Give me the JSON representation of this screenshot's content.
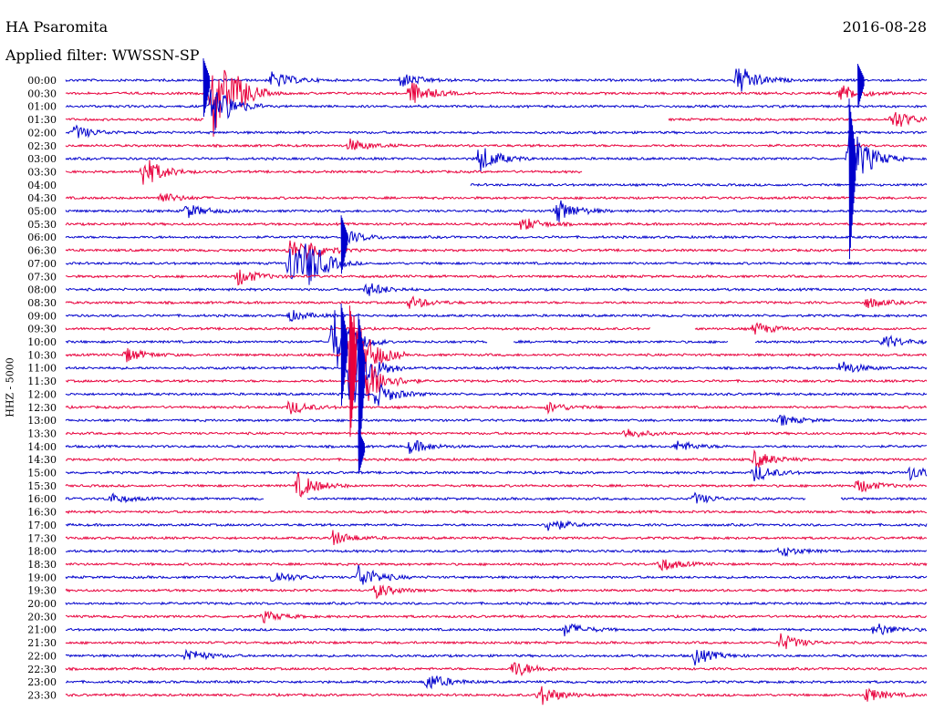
{
  "header": {
    "station": "HA Psaromita",
    "date": "2016-08-28",
    "filter": "Applied filter: WWSSN-SP"
  },
  "chart_data": {
    "type": "line",
    "title": "HA Psaromita",
    "subtitle": "Applied filter: WWSSN-SP",
    "date": "2016-08-28",
    "ylabel": "HHZ - 5000",
    "xlabel": "",
    "grid": false,
    "colors": [
      "#0000cc",
      "#e8003c"
    ],
    "row_labels": [
      "00:00",
      "00:30",
      "01:00",
      "01:30",
      "02:00",
      "02:30",
      "03:00",
      "03:30",
      "04:00",
      "04:30",
      "05:00",
      "05:30",
      "06:00",
      "06:30",
      "07:00",
      "07:30",
      "08:00",
      "08:30",
      "09:00",
      "09:30",
      "10:00",
      "10:30",
      "11:00",
      "11:30",
      "12:00",
      "12:30",
      "13:00",
      "13:30",
      "14:00",
      "14:30",
      "15:00",
      "15:30",
      "16:00",
      "16:30",
      "17:00",
      "17:30",
      "18:00",
      "18:30",
      "19:00",
      "19:30",
      "20:00",
      "20:30",
      "21:00",
      "21:30",
      "22:00",
      "22:30",
      "23:00",
      "23:30"
    ],
    "row_minutes": 30,
    "events": [
      {
        "row": 0,
        "pos": 0.24,
        "amp": 10
      },
      {
        "row": 0,
        "pos": 0.39,
        "amp": 8
      },
      {
        "row": 0,
        "pos": 0.78,
        "amp": 18
      },
      {
        "row": 1,
        "pos": 0.17,
        "amp": 55
      },
      {
        "row": 1,
        "pos": 0.2,
        "amp": 8
      },
      {
        "row": 1,
        "pos": 0.4,
        "amp": 14
      },
      {
        "row": 1,
        "pos": 0.9,
        "amp": 10
      },
      {
        "row": 2,
        "pos": 0.17,
        "amp": 30
      },
      {
        "row": 3,
        "pos": 0.96,
        "amp": 12
      },
      {
        "row": 4,
        "pos": 0.01,
        "amp": 8
      },
      {
        "row": 5,
        "pos": 0.33,
        "amp": 7
      },
      {
        "row": 6,
        "pos": 0.48,
        "amp": 16
      },
      {
        "row": 6,
        "pos": 0.91,
        "amp": 40
      },
      {
        "row": 7,
        "pos": 0.09,
        "amp": 18
      },
      {
        "row": 9,
        "pos": 0.11,
        "amp": 6
      },
      {
        "row": 10,
        "pos": 0.14,
        "amp": 8
      },
      {
        "row": 10,
        "pos": 0.57,
        "amp": 14
      },
      {
        "row": 11,
        "pos": 0.53,
        "amp": 8
      },
      {
        "row": 12,
        "pos": 0.33,
        "amp": 6
      },
      {
        "row": 13,
        "pos": 0.26,
        "amp": 12
      },
      {
        "row": 13,
        "pos": 0.28,
        "amp": 10
      },
      {
        "row": 14,
        "pos": 0.26,
        "amp": 28
      },
      {
        "row": 14,
        "pos": 0.28,
        "amp": 20
      },
      {
        "row": 15,
        "pos": 0.2,
        "amp": 10
      },
      {
        "row": 16,
        "pos": 0.35,
        "amp": 8
      },
      {
        "row": 17,
        "pos": 0.4,
        "amp": 7
      },
      {
        "row": 17,
        "pos": 0.93,
        "amp": 6
      },
      {
        "row": 18,
        "pos": 0.26,
        "amp": 6
      },
      {
        "row": 19,
        "pos": 0.8,
        "amp": 7
      },
      {
        "row": 20,
        "pos": 0.31,
        "amp": 40
      },
      {
        "row": 20,
        "pos": 0.95,
        "amp": 8
      },
      {
        "row": 21,
        "pos": 0.33,
        "amp": 55
      },
      {
        "row": 21,
        "pos": 0.07,
        "amp": 8
      },
      {
        "row": 22,
        "pos": 0.33,
        "amp": 50
      },
      {
        "row": 22,
        "pos": 0.9,
        "amp": 8
      },
      {
        "row": 23,
        "pos": 0.35,
        "amp": 25
      },
      {
        "row": 24,
        "pos": 0.36,
        "amp": 14
      },
      {
        "row": 25,
        "pos": 0.26,
        "amp": 8
      },
      {
        "row": 25,
        "pos": 0.56,
        "amp": 6
      },
      {
        "row": 26,
        "pos": 0.83,
        "amp": 6
      },
      {
        "row": 27,
        "pos": 0.65,
        "amp": 6
      },
      {
        "row": 28,
        "pos": 0.4,
        "amp": 8
      },
      {
        "row": 28,
        "pos": 0.71,
        "amp": 6
      },
      {
        "row": 29,
        "pos": 0.8,
        "amp": 10
      },
      {
        "row": 30,
        "pos": 0.8,
        "amp": 10
      },
      {
        "row": 30,
        "pos": 0.98,
        "amp": 8
      },
      {
        "row": 31,
        "pos": 0.27,
        "amp": 14
      },
      {
        "row": 31,
        "pos": 0.92,
        "amp": 8
      },
      {
        "row": 32,
        "pos": 0.05,
        "amp": 6
      },
      {
        "row": 32,
        "pos": 0.73,
        "amp": 6
      },
      {
        "row": 34,
        "pos": 0.56,
        "amp": 8
      },
      {
        "row": 35,
        "pos": 0.31,
        "amp": 8
      },
      {
        "row": 36,
        "pos": 0.83,
        "amp": 6
      },
      {
        "row": 37,
        "pos": 0.69,
        "amp": 8
      },
      {
        "row": 38,
        "pos": 0.34,
        "amp": 14
      },
      {
        "row": 38,
        "pos": 0.24,
        "amp": 8
      },
      {
        "row": 39,
        "pos": 0.36,
        "amp": 8
      },
      {
        "row": 41,
        "pos": 0.23,
        "amp": 6
      },
      {
        "row": 42,
        "pos": 0.58,
        "amp": 8
      },
      {
        "row": 42,
        "pos": 0.94,
        "amp": 8
      },
      {
        "row": 43,
        "pos": 0.83,
        "amp": 10
      },
      {
        "row": 44,
        "pos": 0.14,
        "amp": 8
      },
      {
        "row": 44,
        "pos": 0.73,
        "amp": 10
      },
      {
        "row": 45,
        "pos": 0.52,
        "amp": 10
      },
      {
        "row": 46,
        "pos": 0.42,
        "amp": 10
      },
      {
        "row": 47,
        "pos": 0.55,
        "amp": 12
      },
      {
        "row": 47,
        "pos": 0.93,
        "amp": 8
      }
    ],
    "spikes": [
      {
        "row": 0,
        "pos": 0.16,
        "amp": 40
      },
      {
        "row": 0,
        "pos": 0.92,
        "amp": 30
      },
      {
        "row": 6,
        "pos": 0.91,
        "amp": 110
      },
      {
        "row": 12,
        "pos": 0.32,
        "amp": 40
      },
      {
        "row": 20,
        "pos": 0.32,
        "amp": 70
      },
      {
        "row": 21,
        "pos": 0.33,
        "amp": 90
      },
      {
        "row": 22,
        "pos": 0.34,
        "amp": 100
      },
      {
        "row": 28,
        "pos": 0.34,
        "amp": 30
      }
    ],
    "gaps": [
      {
        "row": 3,
        "start": 0.16,
        "end": 0.7
      },
      {
        "row": 7,
        "start": 0.6,
        "end": 1.0
      },
      {
        "row": 8,
        "start": 0.0,
        "end": 0.46
      },
      {
        "row": 8,
        "start": 0.46,
        "end": 0.47
      },
      {
        "row": 19,
        "start": 0.68,
        "end": 0.73
      },
      {
        "row": 20,
        "start": 0.49,
        "end": 0.52
      },
      {
        "row": 20,
        "start": 0.77,
        "end": 0.8
      },
      {
        "row": 32,
        "start": 0.23,
        "end": 0.28
      },
      {
        "row": 32,
        "start": 0.86,
        "end": 0.9
      }
    ]
  }
}
